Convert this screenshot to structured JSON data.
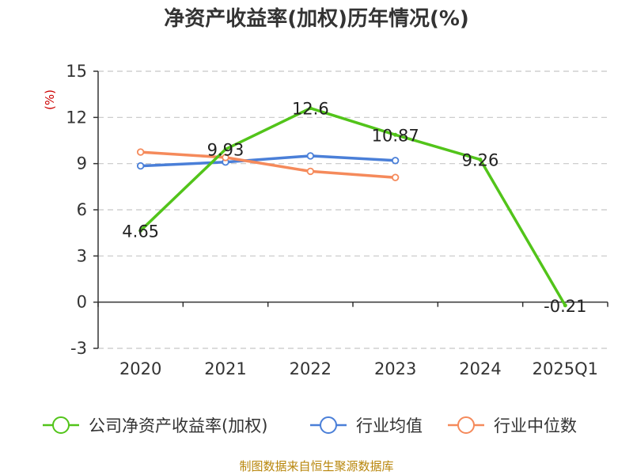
{
  "title": "净资产收益率(加权)历年情况(%)",
  "source": "制图数据来自恒生聚源数据库",
  "chart_data": {
    "type": "line",
    "title": "净资产收益率(加权)历年情况(%)",
    "ylabel": "(%)",
    "xlabel": "",
    "categories": [
      "2020",
      "2021",
      "2022",
      "2023",
      "2024",
      "2025Q1"
    ],
    "ylim": [
      -3,
      15
    ],
    "yticks": [
      -3,
      0,
      3,
      6,
      9,
      12,
      15
    ],
    "yticks_labels": [
      "-3",
      "0",
      "3",
      "6",
      "9",
      "12",
      "15"
    ],
    "grid": true,
    "legend_position": "bottom",
    "series": [
      {
        "name": "公司净资产收益率(加权)",
        "color": "#52c41a",
        "values": [
          4.65,
          9.93,
          12.6,
          10.87,
          9.26,
          -0.21
        ],
        "labels": [
          "4.65",
          "9.93",
          "12.6",
          "10.87",
          "9.26",
          "-0.21"
        ],
        "show_labels": true,
        "hollow_markers": false
      },
      {
        "name": "行业均值",
        "color": "#4a7fd8",
        "values": [
          8.85,
          9.1,
          9.5,
          9.2,
          null,
          null
        ],
        "show_labels": false,
        "hollow_markers": true
      },
      {
        "name": "行业中位数",
        "color": "#f58a5b",
        "values": [
          9.75,
          9.4,
          8.5,
          8.1,
          null,
          null
        ],
        "show_labels": false,
        "hollow_markers": true
      }
    ]
  }
}
